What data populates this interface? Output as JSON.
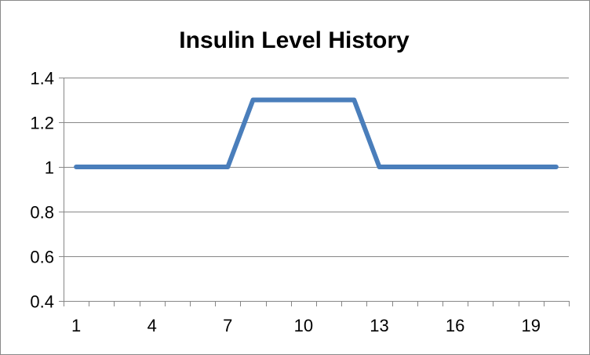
{
  "chart_data": {
    "type": "line",
    "title": "Insulin Level History",
    "xlabel": "",
    "ylabel": "",
    "x": [
      1,
      2,
      3,
      4,
      5,
      6,
      7,
      8,
      9,
      10,
      11,
      12,
      13,
      14,
      15,
      16,
      17,
      18,
      19,
      20
    ],
    "x_tick_labels": [
      "1",
      "4",
      "7",
      "10",
      "13",
      "16",
      "19"
    ],
    "y_tick_labels": [
      "1.4",
      "1.2",
      "1",
      "0.8",
      "0.6",
      "0.4"
    ],
    "y_ticks": [
      1.4,
      1.2,
      1.0,
      0.8,
      0.6,
      0.4
    ],
    "ylim": [
      0.4,
      1.4
    ],
    "grid": true,
    "legend": "none",
    "series": [
      {
        "name": "Insulin Level",
        "color": "#4a7ebb",
        "values": [
          1,
          1,
          1,
          1,
          1,
          1,
          1,
          1.3,
          1.3,
          1.3,
          1.3,
          1.3,
          1,
          1,
          1,
          1,
          1,
          1,
          1,
          1
        ]
      }
    ]
  },
  "colors": {
    "gridline": "#878787",
    "axis": "#878787",
    "series": "#4a7ebb"
  }
}
